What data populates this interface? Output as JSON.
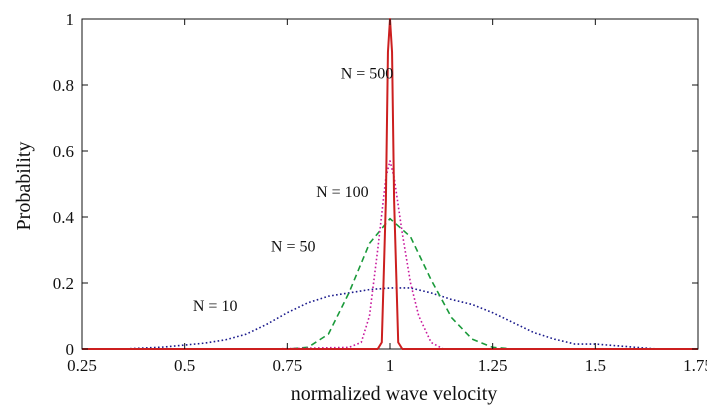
{
  "chart_data": {
    "type": "line",
    "xlabel": "normalized wave velocity",
    "ylabel": "Probability",
    "xlim": [
      0.25,
      1.75
    ],
    "ylim": [
      0,
      1
    ],
    "xticks": [
      "0.25",
      "0.5",
      "0.75",
      "1",
      "1.25",
      "1.5",
      "1.75"
    ],
    "yticks": [
      "0",
      "0.2",
      "0.4",
      "0.6",
      "0.8",
      "1"
    ],
    "grid": false,
    "legend": "none",
    "series": [
      {
        "name": "N = 10",
        "color": "#1a1a8c",
        "style": "dotted",
        "x": [
          0.25,
          0.3,
          0.35,
          0.4,
          0.45,
          0.5,
          0.55,
          0.6,
          0.65,
          0.7,
          0.75,
          0.8,
          0.85,
          0.9,
          0.95,
          1.0,
          1.05,
          1.1,
          1.15,
          1.2,
          1.25,
          1.3,
          1.35,
          1.4,
          1.45,
          1.5,
          1.55,
          1.6,
          1.65,
          1.7,
          1.75
        ],
        "y": [
          0.0,
          0.0,
          0.0,
          0.003,
          0.006,
          0.012,
          0.018,
          0.028,
          0.045,
          0.075,
          0.11,
          0.14,
          0.16,
          0.17,
          0.18,
          0.185,
          0.185,
          0.17,
          0.15,
          0.135,
          0.11,
          0.08,
          0.05,
          0.03,
          0.015,
          0.015,
          0.01,
          0.005,
          0.0,
          0.0,
          0.0
        ]
      },
      {
        "name": "N = 50",
        "color": "#1a9a3a",
        "style": "dashed",
        "x": [
          0.25,
          0.7,
          0.75,
          0.8,
          0.85,
          0.9,
          0.95,
          1.0,
          1.05,
          1.1,
          1.15,
          1.2,
          1.25,
          1.3,
          1.75
        ],
        "y": [
          0.0,
          0.0,
          0.0,
          0.005,
          0.045,
          0.17,
          0.32,
          0.395,
          0.34,
          0.21,
          0.095,
          0.03,
          0.005,
          0.0,
          0.0
        ]
      },
      {
        "name": "N = 100",
        "color": "#c8189c",
        "style": "dotted",
        "x": [
          0.25,
          0.7,
          0.9,
          0.93,
          0.95,
          0.97,
          0.99,
          1.0,
          1.01,
          1.03,
          1.05,
          1.07,
          1.1,
          1.13,
          1.75
        ],
        "y": [
          0.0,
          0.0,
          0.005,
          0.02,
          0.1,
          0.3,
          0.52,
          0.57,
          0.52,
          0.35,
          0.2,
          0.1,
          0.02,
          0.0,
          0.0
        ]
      },
      {
        "name": "N = 500",
        "color": "#cc1f1f",
        "style": "solid",
        "x": [
          0.25,
          0.97,
          0.98,
          0.99,
          0.995,
          1.0,
          1.005,
          1.01,
          1.02,
          1.03,
          1.75
        ],
        "y": [
          0.0,
          0.0,
          0.02,
          0.45,
          0.9,
          1.0,
          0.9,
          0.45,
          0.02,
          0.0,
          0.0
        ]
      }
    ],
    "annotations": [
      {
        "text": "N = 500",
        "x": 0.88,
        "y": 0.82
      },
      {
        "text": "N = 100",
        "x": 0.82,
        "y": 0.46
      },
      {
        "text": "N = 50",
        "x": 0.71,
        "y": 0.295
      },
      {
        "text": "N = 10",
        "x": 0.52,
        "y": 0.115
      }
    ]
  }
}
